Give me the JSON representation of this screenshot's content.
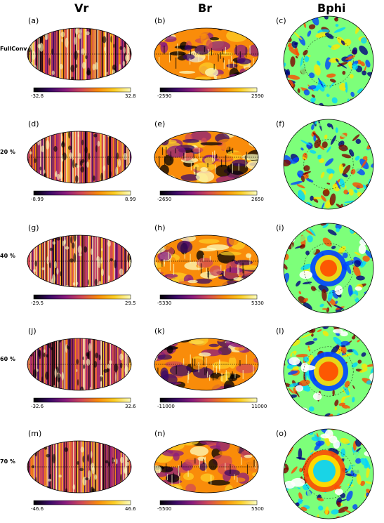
{
  "columns": [
    "Vr",
    "Br",
    "Bphi"
  ],
  "rows": [
    {
      "label": "FullConv",
      "tags": [
        "(a)",
        "(b)",
        "(c)"
      ],
      "vr_range": [
        "-32.8",
        "32.8"
      ],
      "br_range": [
        "-2590",
        "2590"
      ]
    },
    {
      "label": "20 %",
      "tags": [
        "(d)",
        "(e)",
        "(f)"
      ],
      "vr_range": [
        "-8.99",
        "8.99"
      ],
      "br_range": [
        "-2650",
        "2650"
      ]
    },
    {
      "label": "40 %",
      "tags": [
        "(g)",
        "(h)",
        "(i)"
      ],
      "vr_range": [
        "-29.5",
        "29.5"
      ],
      "br_range": [
        "-5330",
        "5330"
      ]
    },
    {
      "label": "60 %",
      "tags": [
        "(j)",
        "(k)",
        "(l)"
      ],
      "vr_range": [
        "-32.6",
        "32.6"
      ],
      "br_range": [
        "-11000",
        "11000"
      ]
    },
    {
      "label": "70 %",
      "tags": [
        "(m)",
        "(n)",
        "(o)"
      ],
      "vr_range": [
        "-46.6",
        "46.6"
      ],
      "br_range": [
        "-5500",
        "5500"
      ]
    }
  ]
}
